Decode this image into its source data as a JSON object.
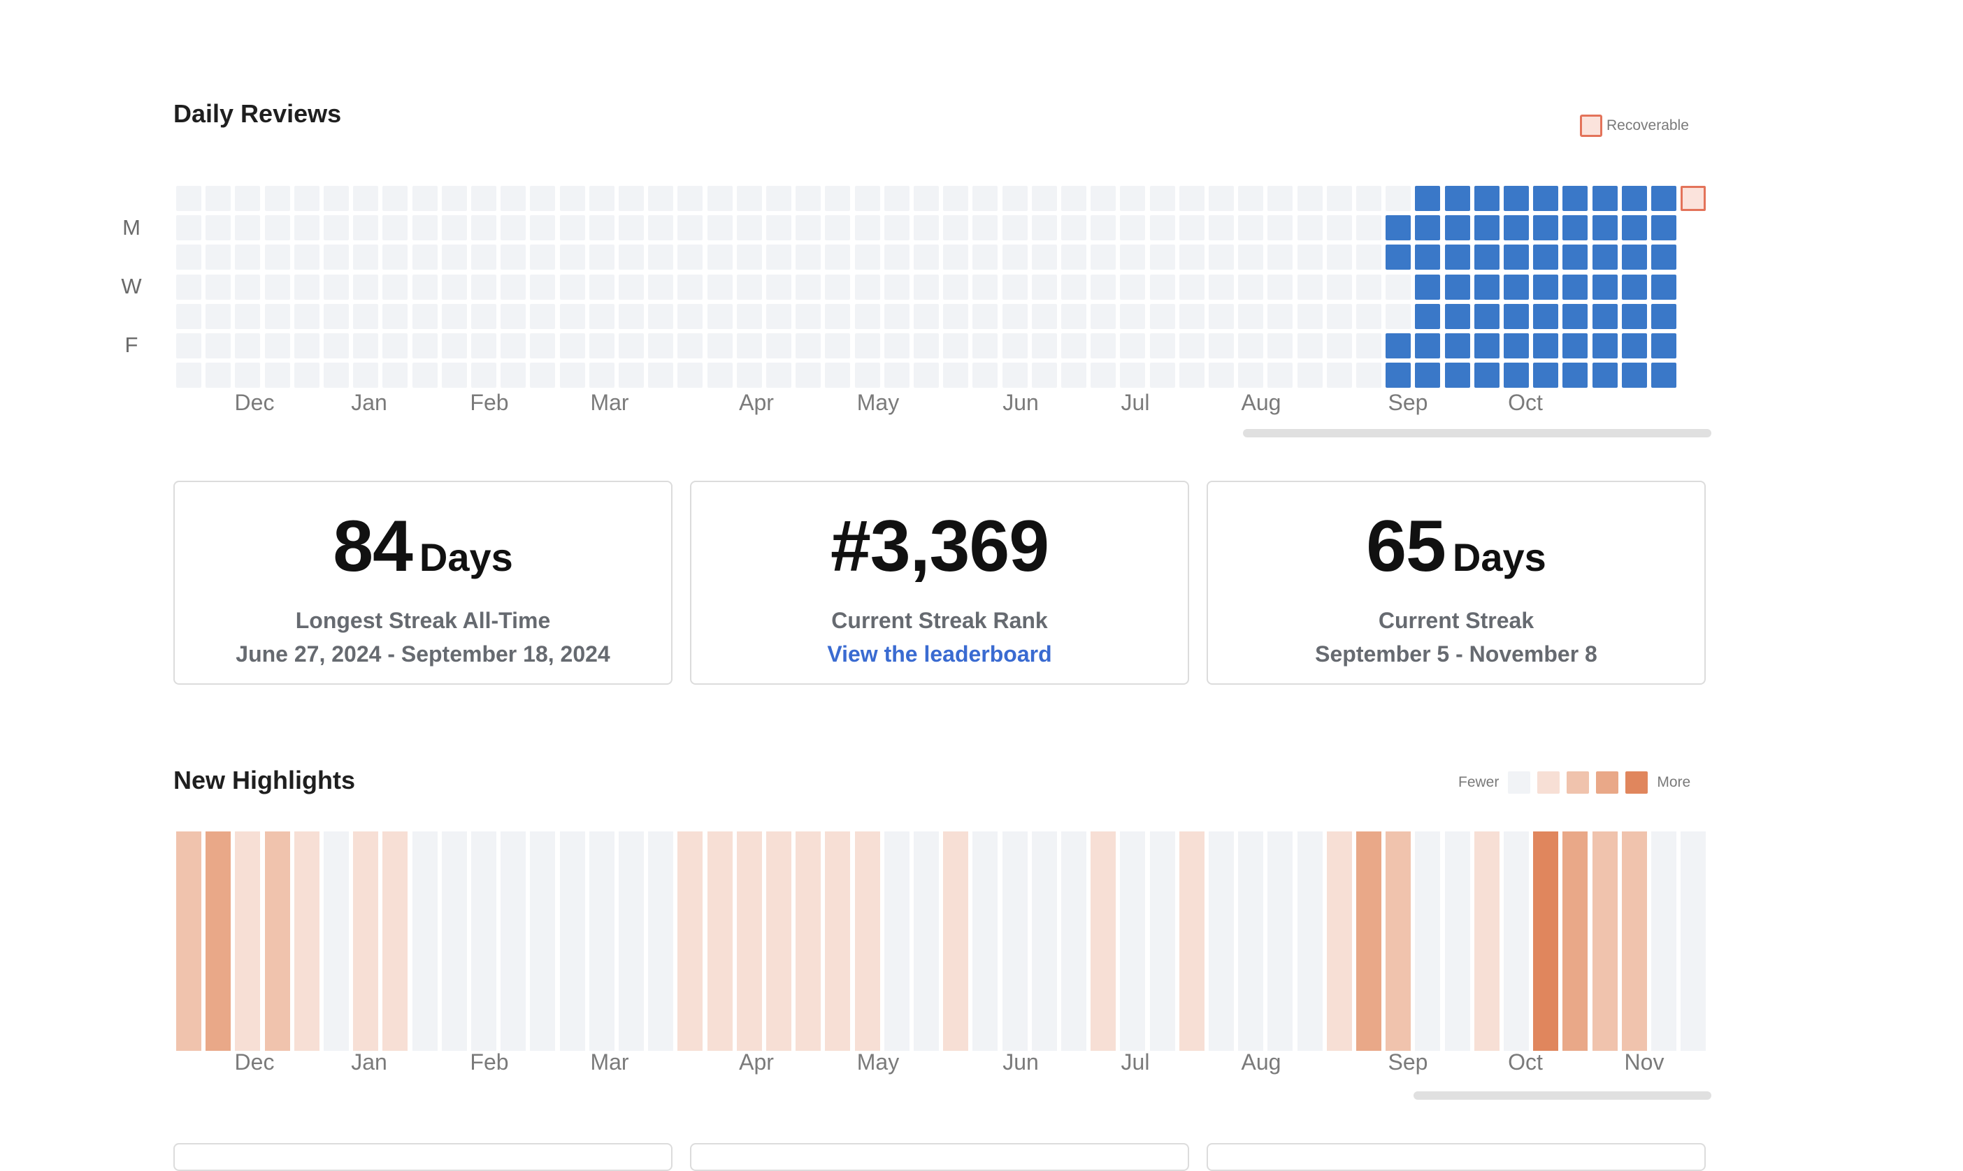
{
  "daily_reviews": {
    "title": "Daily Reviews",
    "legend_label": "Recoverable",
    "day_labels": [
      "M",
      "W",
      "F"
    ],
    "months": [
      "Dec",
      "Jan",
      "Feb",
      "Mar",
      "Apr",
      "May",
      "Jun",
      "Jul",
      "Aug",
      "Sep",
      "Oct"
    ],
    "num_weeks": 52,
    "reviewed_from_week": 41,
    "colors": {
      "empty": "#f1f3f6",
      "reviewed": "#3a78c8",
      "recoverable_fill": "#fbe3dc",
      "recoverable_border": "#e3735a"
    }
  },
  "stats": [
    {
      "value": "84",
      "unit": "Days",
      "label": "Longest Streak All-Time",
      "sub": "June 27, 2024 - September 18, 2024"
    },
    {
      "value": "#3,369",
      "unit": "",
      "label": "Current Streak Rank",
      "link": "View the leaderboard"
    },
    {
      "value": "65",
      "unit": "Days",
      "label": "Current Streak",
      "sub": "September 5 - November 8"
    }
  ],
  "new_highlights": {
    "title": "New Highlights",
    "legend_fewer": "Fewer",
    "legend_more": "More",
    "months": [
      "Dec",
      "Jan",
      "Feb",
      "Mar",
      "Apr",
      "May",
      "Jun",
      "Jul",
      "Aug",
      "Sep",
      "Oct",
      "Nov"
    ],
    "scale": [
      "#f1f3f6",
      "#f7dfd5",
      "#f0c3ad",
      "#e9a888",
      "#e0865d"
    ],
    "weekly_levels": [
      2,
      3,
      1,
      2,
      1,
      0,
      1,
      1,
      0,
      0,
      0,
      0,
      0,
      0,
      0,
      0,
      0,
      1,
      1,
      1,
      1,
      1,
      1,
      1,
      0,
      0,
      1,
      0,
      0,
      0,
      0,
      1,
      0,
      0,
      1,
      0,
      0,
      0,
      0,
      1,
      3,
      2,
      0,
      0,
      1,
      0,
      4,
      3,
      2,
      2,
      0,
      0
    ]
  }
}
